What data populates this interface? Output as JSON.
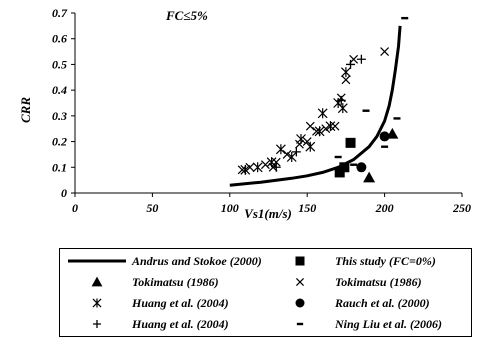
{
  "chart_data": {
    "type": "scatter",
    "xlabel": "Vs1(m/s)",
    "ylabel": "CRR",
    "xlim": [
      0,
      250
    ],
    "ylim": [
      0,
      0.7
    ],
    "x_ticks": [
      "0",
      "50",
      "100",
      "150",
      "200",
      "250"
    ],
    "y_ticks": [
      "0",
      "0.1",
      "0.2",
      "0.3",
      "0.4",
      "0.5",
      "0.6",
      "0.7"
    ],
    "annotation": "FC≤5%",
    "grid": false,
    "legend_position": "bottom",
    "series": [
      {
        "name": "Andrus and Stokoe (2000)",
        "marker": "line",
        "points": [
          [
            100,
            0.03
          ],
          [
            120,
            0.042
          ],
          [
            140,
            0.057
          ],
          [
            150,
            0.067
          ],
          [
            160,
            0.08
          ],
          [
            170,
            0.1
          ],
          [
            180,
            0.13
          ],
          [
            190,
            0.18
          ],
          [
            195,
            0.22
          ],
          [
            200,
            0.28
          ],
          [
            203,
            0.34
          ],
          [
            205,
            0.4
          ],
          [
            207,
            0.48
          ],
          [
            209,
            0.57
          ],
          [
            210,
            0.65
          ]
        ]
      },
      {
        "name": "This study (FC=0%)",
        "marker": "square",
        "points": [
          [
            171,
            0.08
          ],
          [
            174,
            0.1
          ],
          [
            178,
            0.195
          ]
        ]
      },
      {
        "name": "Tokimatsu (1986)",
        "marker": "triangle",
        "points": [
          [
            190,
            0.06
          ],
          [
            205,
            0.23
          ]
        ]
      },
      {
        "name": "Tokimatsu (1986)",
        "marker": "x",
        "points": [
          [
            108,
            0.09
          ],
          [
            113,
            0.1
          ],
          [
            123,
            0.11
          ],
          [
            128,
            0.1
          ],
          [
            130,
            0.12
          ],
          [
            137,
            0.15
          ],
          [
            145,
            0.19
          ],
          [
            150,
            0.2
          ],
          [
            152,
            0.26
          ],
          [
            156,
            0.24
          ],
          [
            162,
            0.25
          ],
          [
            168,
            0.26
          ],
          [
            172,
            0.37
          ],
          [
            175,
            0.44
          ],
          [
            180,
            0.52
          ],
          [
            200,
            0.55
          ]
        ]
      },
      {
        "name": "Huang et al. (2004)",
        "marker": "asterisk",
        "points": [
          [
            110,
            0.09
          ],
          [
            118,
            0.1
          ],
          [
            127,
            0.12
          ],
          [
            133,
            0.17
          ],
          [
            140,
            0.14
          ],
          [
            146,
            0.21
          ],
          [
            152,
            0.18
          ],
          [
            158,
            0.24
          ],
          [
            160,
            0.31
          ],
          [
            165,
            0.26
          ],
          [
            170,
            0.35
          ],
          [
            173,
            0.33
          ],
          [
            175,
            0.47
          ]
        ]
      },
      {
        "name": "Rauch et al. (2000)",
        "marker": "circle",
        "points": [
          [
            185,
            0.1
          ],
          [
            200,
            0.22
          ]
        ]
      },
      {
        "name": "Huang et al. (2004)",
        "marker": "plus",
        "points": [
          [
            130,
            0.1
          ],
          [
            143,
            0.16
          ],
          [
            172,
            0.36
          ],
          [
            178,
            0.5
          ],
          [
            185,
            0.52
          ]
        ]
      },
      {
        "name": "Ning Liu et al. (2006)",
        "marker": "dash",
        "points": [
          [
            170,
            0.14
          ],
          [
            180,
            0.11
          ],
          [
            188,
            0.32
          ],
          [
            200,
            0.18
          ],
          [
            208,
            0.29
          ],
          [
            213,
            0.68
          ]
        ]
      }
    ]
  }
}
